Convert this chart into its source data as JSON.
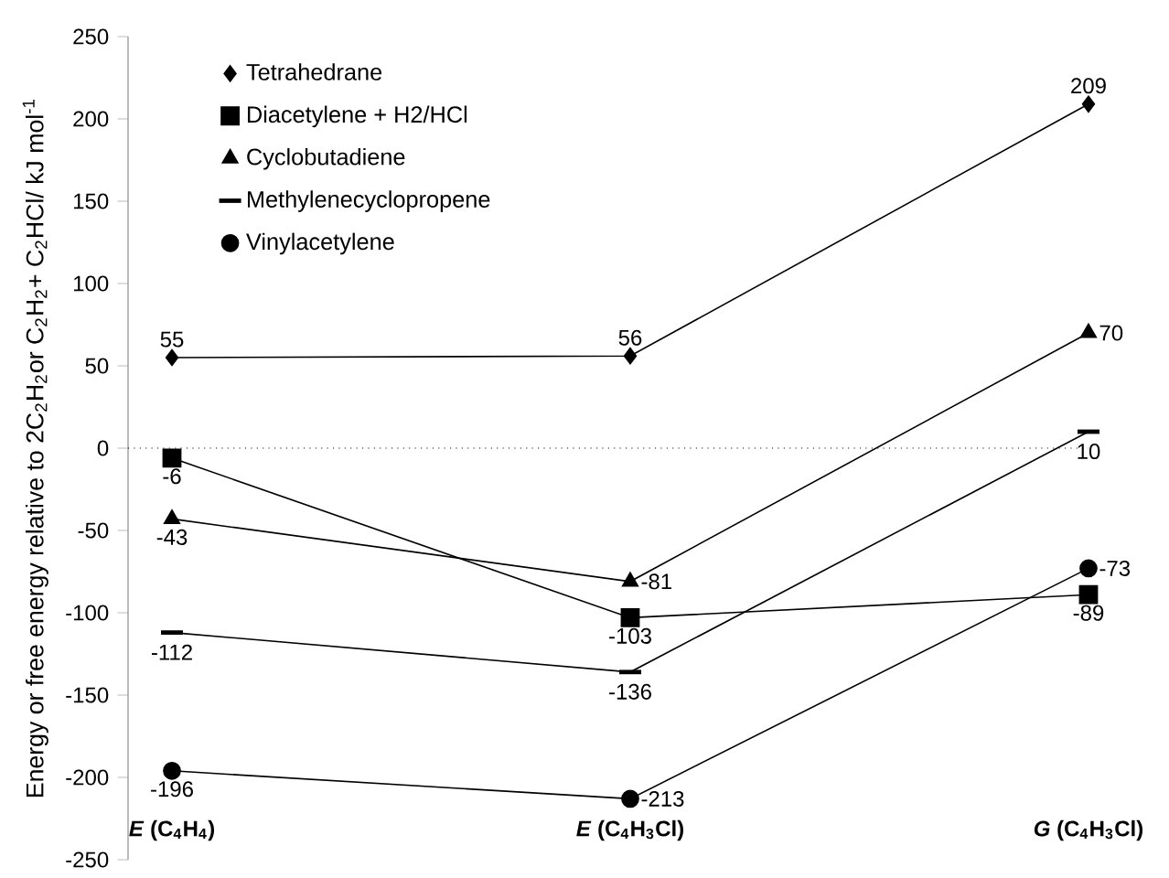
{
  "chart_data": {
    "type": "line",
    "ylabel": "Energy or free energy relative to 2C$_{2}$H$_{2}$or C$_{2}$H$_{2}$+ C$_{2}$HCl/ kJ mol$^{-1}$",
    "categories": [
      "*E* (C$_{4}$H$_{4}$)",
      "*E* (C$_{4}$H$_{3}$Cl)",
      "*G* (C$_{4}$H$_{3}$Cl)"
    ],
    "series": [
      {
        "name": "Tetrahedrane",
        "color": "#000000",
        "marker": "diamond",
        "values": [
          55,
          56,
          209
        ]
      },
      {
        "name": "Diacetylene + H2/HCl",
        "color": "#000000",
        "marker": "square",
        "values": [
          -6,
          -103,
          -89
        ]
      },
      {
        "name": "Cyclobutadiene",
        "color": "#000000",
        "marker": "triangle",
        "values": [
          -43,
          -81,
          70
        ]
      },
      {
        "name": "Methylenecyclopropene",
        "color": "#000000",
        "values": [
          -112,
          -136,
          10
        ]
      },
      {
        "name": "Vinylacetylene",
        "color": "#000000",
        "marker": "circle",
        "values": [
          -196,
          -213,
          -73
        ]
      }
    ],
    "ylim": [
      -250,
      250
    ],
    "yticks": [
      -250,
      -200,
      -150,
      -100,
      -50,
      0,
      50,
      100,
      150,
      200,
      250
    ],
    "ref_lines": [
      {
        "axis": "y",
        "value": 0,
        "line_style": "dotted"
      }
    ],
    "data_labels": true,
    "legend": "top left",
    "line_style": "solid"
  }
}
